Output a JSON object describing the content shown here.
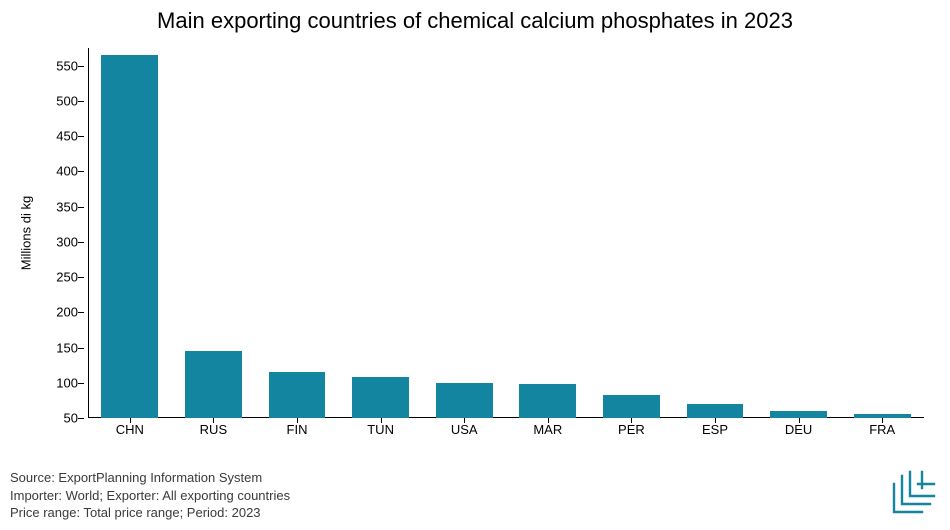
{
  "chart": {
    "type": "bar",
    "title": "Main exporting countries of chemical calcium phosphates in 2023",
    "title_fontsize": 22,
    "y_axis_title": "Millions di kg",
    "label_fontsize": 13,
    "categories": [
      "CHN",
      "RUS",
      "FIN",
      "TUN",
      "USA",
      "MAR",
      "PER",
      "ESP",
      "DEU",
      "FRA"
    ],
    "values": [
      565,
      145,
      115,
      108,
      100,
      98,
      82,
      70,
      60,
      55
    ],
    "bar_color": "#1385a0",
    "background_color": "#ffffff",
    "ylim": [
      50,
      575
    ],
    "ytick_step": 50,
    "yticks": [
      50,
      100,
      150,
      200,
      250,
      300,
      350,
      400,
      450,
      500,
      550
    ],
    "bar_width_ratio": 0.68,
    "axis_color": "#000000"
  },
  "footer": {
    "line1": "Source: ExportPlanning Information System",
    "line2": "Importer: World; Exporter: All exporting countries",
    "line3": "Price range: Total price range; Period: 2023",
    "text_color": "#3a3a3a"
  },
  "logo": {
    "stroke_color": "#1385a0"
  }
}
